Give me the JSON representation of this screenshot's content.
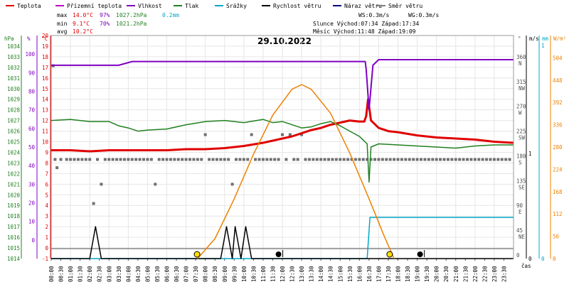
{
  "legend": [
    {
      "label": "Teplota",
      "color": "#e00000"
    },
    {
      "label": "Přízemní teplota",
      "color": "#c000c0"
    },
    {
      "label": "Vlhkost",
      "color": "#8000c0"
    },
    {
      "label": "Tlak",
      "color": "#208020"
    },
    {
      "label": "Srážky",
      "color": "#00a8c8"
    },
    {
      "label": "Rychlost větru",
      "color": "#000000"
    },
    {
      "label": "Náraz větru",
      "color": "#000080"
    },
    {
      "label": "Směr větru",
      "color": "#808080"
    }
  ],
  "stats": {
    "max_label": "max",
    "max_temp": "14.0°C",
    "max_hum": "97%",
    "max_press": "1027.2hPa",
    "max_rain": "0.2mm",
    "min_label": "min",
    "min_temp": "9.1°C",
    "min_hum": "70%",
    "min_press": "1021.2hPa",
    "avg_label": "avg",
    "avg_temp": "10.2°C",
    "ws": "WS:0.3m/s",
    "wg": "WG:0.3m/s",
    "sun": "Slunce Východ:07:34   Západ:17:34",
    "moon": "Měsíc  Východ:11:48   Západ:19:09"
  },
  "date": "29.10.2022",
  "axis_units": {
    "hpa": "hPa",
    "pct": "%",
    "degc": "°C",
    "deg": "°",
    "ms": "m/s",
    "mm": "mm",
    "wm2": "W/m²",
    "cas": "čas"
  },
  "chart_data": {
    "type": "line",
    "title": "29.10.2022",
    "x": [
      "00:00",
      "00:30",
      "01:00",
      "01:30",
      "02:00",
      "02:30",
      "03:00",
      "03:30",
      "04:00",
      "04:30",
      "05:00",
      "05:30",
      "06:00",
      "06:30",
      "07:00",
      "07:30",
      "08:00",
      "08:30",
      "09:00",
      "09:30",
      "10:00",
      "10:30",
      "11:00",
      "11:30",
      "12:00",
      "12:30",
      "13:00",
      "13:30",
      "14:00",
      "14:30",
      "15:00",
      "15:30",
      "16:00",
      "16:30",
      "17:00",
      "17:30",
      "18:00",
      "18:30",
      "19:00",
      "19:30",
      "20:00",
      "20:30",
      "21:00",
      "21:30",
      "22:00",
      "22:30",
      "23:00",
      "23:30"
    ],
    "xlabel": "čas",
    "axes": {
      "pressure_hpa": {
        "ticks": [
          1014,
          1015,
          1016,
          1017,
          1018,
          1019,
          1020,
          1021,
          1022,
          1023,
          1024,
          1025,
          1026,
          1027,
          1028,
          1029,
          1030,
          1031,
          1032,
          1033,
          1034
        ],
        "range": [
          1014,
          1035
        ]
      },
      "humidity_pct": {
        "ticks": [
          0,
          10,
          20,
          30,
          40,
          50,
          60,
          70,
          80,
          90,
          100
        ],
        "range": [
          -10,
          110
        ]
      },
      "temperature_c": {
        "ticks": [
          -1,
          0,
          1,
          2,
          3,
          4,
          5,
          6,
          7,
          8,
          9,
          10,
          11,
          12,
          13,
          14,
          15,
          16,
          17,
          18,
          19,
          20
        ],
        "range": [
          -1,
          20
        ]
      },
      "wind_dir_deg": {
        "ticks": [
          [
            "0",
            ""
          ],
          [
            "45",
            "NE"
          ],
          [
            "90",
            "E"
          ],
          [
            "135",
            "SE"
          ],
          [
            "180",
            "S"
          ],
          [
            "225",
            "SW"
          ],
          [
            "270",
            "W"
          ],
          [
            "315",
            "NW"
          ],
          [
            "360",
            "N"
          ]
        ],
        "range": [
          0,
          405
        ]
      },
      "wind_ms": {
        "ticks": [
          "0",
          "1"
        ]
      },
      "rain_mm": {
        "ticks": [
          "0",
          "1"
        ]
      },
      "radiation_wm2": {
        "ticks": [
          0,
          56,
          112,
          168,
          224,
          280,
          336,
          392,
          448,
          504
        ],
        "range": [
          0,
          560
        ]
      }
    },
    "series": [
      {
        "name": "Teplota",
        "color": "#e00000",
        "axis": "temperature_c",
        "points": [
          [
            0,
            9.2
          ],
          [
            1,
            9.2
          ],
          [
            2,
            9.1
          ],
          [
            3,
            9.2
          ],
          [
            4,
            9.2
          ],
          [
            5,
            9.2
          ],
          [
            6,
            9.2
          ],
          [
            7,
            9.3
          ],
          [
            8,
            9.3
          ],
          [
            9,
            9.4
          ],
          [
            10,
            9.6
          ],
          [
            11,
            9.9
          ],
          [
            12,
            10.3
          ],
          [
            12.5,
            10.5
          ],
          [
            13,
            10.8
          ],
          [
            13.5,
            11.1
          ],
          [
            14,
            11.3
          ],
          [
            14.5,
            11.6
          ],
          [
            15,
            11.8
          ],
          [
            15.5,
            12.0
          ],
          [
            16,
            11.9
          ],
          [
            16.25,
            11.9
          ],
          [
            16.35,
            12.4
          ],
          [
            16.45,
            14.0
          ],
          [
            16.6,
            12.0
          ],
          [
            17,
            11.3
          ],
          [
            17.5,
            11.0
          ],
          [
            18,
            10.9
          ],
          [
            19,
            10.6
          ],
          [
            20,
            10.4
          ],
          [
            21,
            10.3
          ],
          [
            22,
            10.2
          ],
          [
            23,
            10.0
          ],
          [
            23.98,
            9.9
          ]
        ]
      },
      {
        "name": "Vlhkost",
        "color": "#8000c0",
        "axis": "humidity_pct",
        "points": [
          [
            0,
            94
          ],
          [
            3.5,
            94
          ],
          [
            4.2,
            96
          ],
          [
            16.3,
            96
          ],
          [
            16.35,
            92
          ],
          [
            16.5,
            70
          ],
          [
            16.7,
            94
          ],
          [
            17.0,
            97
          ],
          [
            23.98,
            97
          ]
        ]
      },
      {
        "name": "Tlak",
        "color": "#208020",
        "axis": "pressure_hpa",
        "points": [
          [
            0,
            1027.0
          ],
          [
            1,
            1027.1
          ],
          [
            2,
            1026.9
          ],
          [
            3,
            1026.9
          ],
          [
            3.5,
            1026.5
          ],
          [
            4,
            1026.3
          ],
          [
            4.5,
            1026.0
          ],
          [
            5,
            1026.1
          ],
          [
            6,
            1026.2
          ],
          [
            7,
            1026.6
          ],
          [
            8,
            1026.9
          ],
          [
            9,
            1027.0
          ],
          [
            10,
            1026.8
          ],
          [
            11,
            1027.1
          ],
          [
            11.5,
            1026.8
          ],
          [
            12,
            1026.9
          ],
          [
            13,
            1026.3
          ],
          [
            13.5,
            1026.4
          ],
          [
            14,
            1026.7
          ],
          [
            14.5,
            1026.9
          ],
          [
            15,
            1026.5
          ],
          [
            15.5,
            1026.0
          ],
          [
            16,
            1025.5
          ],
          [
            16.4,
            1024.8
          ],
          [
            16.5,
            1021.2
          ],
          [
            16.6,
            1024.5
          ],
          [
            17,
            1024.8
          ],
          [
            18,
            1024.7
          ],
          [
            19,
            1024.6
          ],
          [
            20,
            1024.5
          ],
          [
            21,
            1024.4
          ],
          [
            22,
            1024.6
          ],
          [
            23,
            1024.7
          ],
          [
            23.98,
            1024.7
          ]
        ]
      },
      {
        "name": "Srážky",
        "color": "#00a8c8",
        "axis": "rain_mm",
        "points": [
          [
            0,
            0
          ],
          [
            16.4,
            0
          ],
          [
            16.55,
            0.2
          ],
          [
            23.98,
            0.2
          ]
        ]
      },
      {
        "name": "Rychlost větru",
        "color": "#000000",
        "axis": "wind_ms",
        "points": [
          [
            0,
            0
          ],
          [
            2.0,
            0
          ],
          [
            2.3,
            0.3
          ],
          [
            2.6,
            0
          ],
          [
            8.8,
            0
          ],
          [
            9.1,
            0.3
          ],
          [
            9.4,
            0
          ],
          [
            9.55,
            0.3
          ],
          [
            9.85,
            0
          ],
          [
            10.1,
            0.3
          ],
          [
            10.4,
            0
          ],
          [
            23.98,
            0
          ]
        ]
      },
      {
        "name": "Slunce",
        "color": "#f08000",
        "axis": "radiation_wm2",
        "points": [
          [
            7.6,
            0
          ],
          [
            8.5,
            50
          ],
          [
            9.5,
            150
          ],
          [
            10.5,
            262
          ],
          [
            11.5,
            360
          ],
          [
            12.5,
            425
          ],
          [
            13,
            437
          ],
          [
            13.5,
            425
          ],
          [
            14.5,
            365
          ],
          [
            15.5,
            265
          ],
          [
            16.5,
            150
          ],
          [
            17.3,
            55
          ],
          [
            17.8,
            0
          ]
        ]
      }
    ],
    "wind_direction_points": [
      [
        0.1,
        350
      ],
      [
        0.2,
        180
      ],
      [
        0.3,
        165
      ],
      [
        0.5,
        180
      ],
      [
        0.8,
        180
      ],
      [
        1.0,
        180
      ],
      [
        1.2,
        180
      ],
      [
        1.4,
        180
      ],
      [
        1.6,
        180
      ],
      [
        1.8,
        180
      ],
      [
        2.0,
        180
      ],
      [
        2.2,
        100
      ],
      [
        2.4,
        180
      ],
      [
        2.6,
        135
      ],
      [
        2.8,
        180
      ],
      [
        3.0,
        180
      ],
      [
        3.2,
        180
      ],
      [
        3.4,
        180
      ],
      [
        3.6,
        180
      ],
      [
        3.8,
        180
      ],
      [
        4.0,
        180
      ],
      [
        4.2,
        180
      ],
      [
        4.4,
        180
      ],
      [
        4.6,
        180
      ],
      [
        4.8,
        180
      ],
      [
        5.0,
        180
      ],
      [
        5.2,
        180
      ],
      [
        5.4,
        135
      ],
      [
        5.6,
        180
      ],
      [
        5.8,
        180
      ],
      [
        6.0,
        180
      ],
      [
        6.2,
        180
      ],
      [
        6.4,
        180
      ],
      [
        6.6,
        180
      ],
      [
        6.8,
        180
      ],
      [
        7.0,
        180
      ],
      [
        7.2,
        180
      ],
      [
        7.4,
        180
      ],
      [
        7.6,
        180
      ],
      [
        7.8,
        180
      ],
      [
        8.0,
        225
      ],
      [
        8.2,
        180
      ],
      [
        8.4,
        180
      ],
      [
        8.6,
        180
      ],
      [
        8.8,
        180
      ],
      [
        9.0,
        180
      ],
      [
        9.2,
        180
      ],
      [
        9.4,
        135
      ],
      [
        9.6,
        180
      ],
      [
        9.8,
        180
      ],
      [
        10.0,
        180
      ],
      [
        10.2,
        180
      ],
      [
        10.4,
        225
      ],
      [
        10.6,
        180
      ],
      [
        10.8,
        180
      ],
      [
        11.0,
        180
      ],
      [
        11.2,
        180
      ],
      [
        11.4,
        180
      ],
      [
        11.6,
        180
      ],
      [
        11.8,
        180
      ],
      [
        12.0,
        225
      ],
      [
        12.2,
        180
      ],
      [
        12.4,
        225
      ],
      [
        12.6,
        180
      ],
      [
        12.8,
        180
      ],
      [
        13.0,
        225
      ],
      [
        13.2,
        180
      ],
      [
        13.4,
        180
      ],
      [
        13.6,
        180
      ],
      [
        13.8,
        180
      ],
      [
        14.0,
        180
      ],
      [
        14.2,
        180
      ],
      [
        14.4,
        180
      ],
      [
        14.6,
        180
      ],
      [
        14.8,
        180
      ],
      [
        15.0,
        180
      ],
      [
        15.2,
        180
      ],
      [
        15.4,
        180
      ],
      [
        15.6,
        180
      ],
      [
        15.8,
        180
      ],
      [
        16.0,
        180
      ],
      [
        16.2,
        180
      ],
      [
        16.4,
        180
      ],
      [
        16.6,
        180
      ],
      [
        16.8,
        180
      ],
      [
        17.0,
        180
      ],
      [
        17.2,
        180
      ],
      [
        17.4,
        180
      ],
      [
        17.6,
        180
      ],
      [
        17.8,
        180
      ],
      [
        18.0,
        180
      ],
      [
        18.2,
        180
      ],
      [
        18.4,
        180
      ],
      [
        18.6,
        180
      ],
      [
        18.8,
        180
      ],
      [
        19.0,
        180
      ],
      [
        19.2,
        180
      ],
      [
        19.4,
        180
      ],
      [
        19.6,
        180
      ],
      [
        19.8,
        180
      ],
      [
        20.0,
        180
      ],
      [
        20.2,
        180
      ],
      [
        20.4,
        180
      ],
      [
        20.6,
        180
      ],
      [
        20.8,
        180
      ],
      [
        21.0,
        180
      ],
      [
        21.2,
        180
      ],
      [
        21.4,
        180
      ],
      [
        21.6,
        180
      ],
      [
        21.8,
        180
      ],
      [
        22.0,
        180
      ],
      [
        22.2,
        180
      ],
      [
        22.4,
        180
      ],
      [
        22.6,
        180
      ],
      [
        22.8,
        180
      ],
      [
        23.0,
        180
      ],
      [
        23.2,
        180
      ],
      [
        23.4,
        180
      ],
      [
        23.6,
        180
      ],
      [
        23.8,
        180
      ]
    ],
    "events": [
      {
        "type": "sunrise",
        "time": 7.57
      },
      {
        "type": "sunset",
        "time": 17.57
      },
      {
        "type": "moonrise",
        "time": 11.8
      },
      {
        "type": "moonset",
        "time": 19.15
      }
    ],
    "grid": true
  }
}
